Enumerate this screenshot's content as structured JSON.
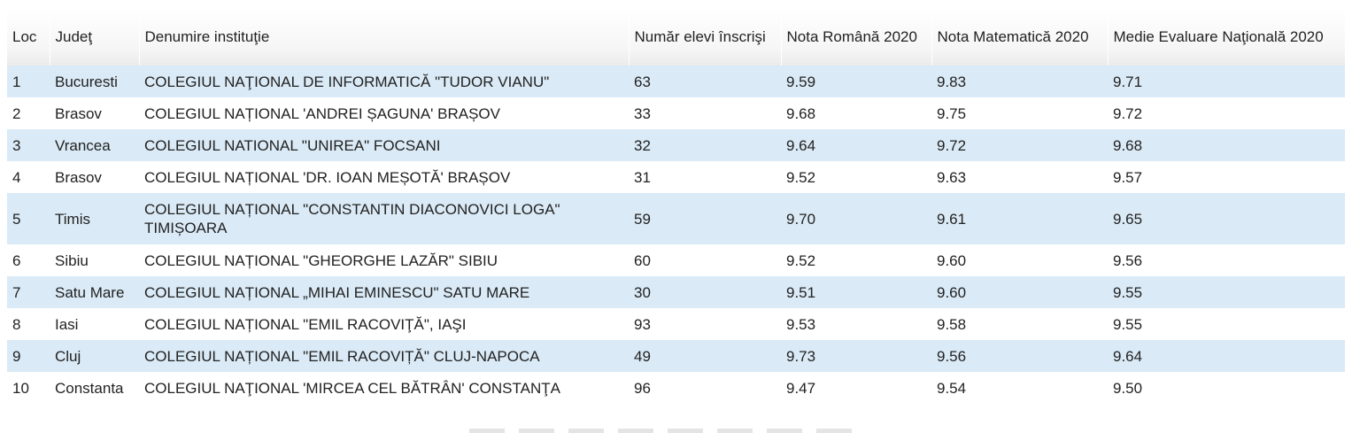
{
  "table": {
    "headers": {
      "loc": "Loc",
      "judet": "Judeţ",
      "denumire": "Denumire instituţie",
      "numar": "Număr elevi înscrişi",
      "romana": "Nota Română 2020",
      "matematica": "Nota Matematică 2020",
      "medie": "Medie Evaluare Naţională 2020"
    },
    "rows": [
      {
        "loc": "1",
        "judet": "Bucuresti",
        "denumire": "COLEGIUL NAŢIONAL DE INFORMATICĂ \"TUDOR VIANU\"",
        "numar": "63",
        "romana": "9.59",
        "matematica": "9.83",
        "medie": "9.71"
      },
      {
        "loc": "2",
        "judet": "Brasov",
        "denumire": "COLEGIUL NAȚIONAL 'ANDREI ȘAGUNA' BRAȘOV",
        "numar": "33",
        "romana": "9.68",
        "matematica": "9.75",
        "medie": "9.72"
      },
      {
        "loc": "3",
        "judet": "Vrancea",
        "denumire": "COLEGIUL NATIONAL \"UNIREA\" FOCSANI",
        "numar": "32",
        "romana": "9.64",
        "matematica": "9.72",
        "medie": "9.68"
      },
      {
        "loc": "4",
        "judet": "Brasov",
        "denumire": "COLEGIUL NAȚIONAL 'DR. IOAN MEȘOTĂ' BRAȘOV",
        "numar": "31",
        "romana": "9.52",
        "matematica": "9.63",
        "medie": "9.57"
      },
      {
        "loc": "5",
        "judet": "Timis",
        "denumire": "COLEGIUL NAȚIONAL \"CONSTANTIN DIACONOVICI LOGA\" TIMIȘOARA",
        "numar": "59",
        "romana": "9.70",
        "matematica": "9.61",
        "medie": "9.65"
      },
      {
        "loc": "6",
        "judet": "Sibiu",
        "denumire": "COLEGIUL NAȚIONAL \"GHEORGHE LAZĂR\" SIBIU",
        "numar": "60",
        "romana": "9.52",
        "matematica": "9.60",
        "medie": "9.56"
      },
      {
        "loc": "7",
        "judet": "Satu Mare",
        "denumire": "COLEGIUL NAȚIONAL „MIHAI EMINESCU\" SATU MARE",
        "numar": "30",
        "romana": "9.51",
        "matematica": "9.60",
        "medie": "9.55"
      },
      {
        "loc": "8",
        "judet": "Iasi",
        "denumire": "COLEGIUL NAȚIONAL \"EMIL RACOVIŢĂ\", IAŞI",
        "numar": "93",
        "romana": "9.53",
        "matematica": "9.58",
        "medie": "9.55"
      },
      {
        "loc": "9",
        "judet": "Cluj",
        "denumire": "COLEGIUL NAȚIONAL \"EMIL RACOVIȚĂ\" CLUJ-NAPOCA",
        "numar": "49",
        "romana": "9.73",
        "matematica": "9.56",
        "medie": "9.64"
      },
      {
        "loc": "10",
        "judet": "Constanta",
        "denumire": "COLEGIUL NAŢIONAL 'MIRCEA CEL BĂTRÂN' CONSTANŢA",
        "numar": "96",
        "romana": "9.47",
        "matematica": "9.54",
        "medie": "9.50"
      }
    ]
  },
  "colors": {
    "row_stripe": "#daeaf6",
    "header_bg": "#f3f3f3"
  }
}
